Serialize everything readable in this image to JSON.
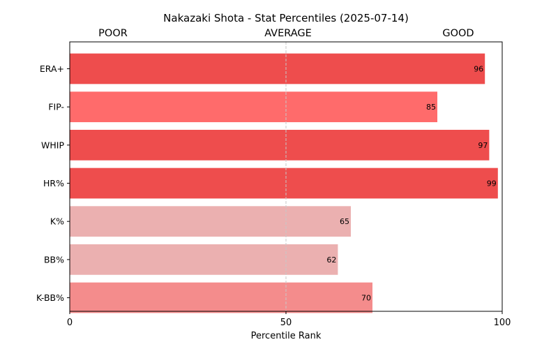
{
  "colors": {
    "elite": "#ee4d4d",
    "strong": "#ff6b6b",
    "above_avg": "#f48c8c",
    "average": "#ebb0b0",
    "axis": "#000000",
    "midline": "#c7c7c7"
  },
  "chart_data": {
    "type": "bar",
    "orientation": "horizontal",
    "title": "Nakazaki Shota - Stat Percentiles (2025-07-14)",
    "xlabel": "Percentile Rank",
    "ylabel": "",
    "xlim": [
      0,
      100
    ],
    "x_ticks": [
      "0",
      "50",
      "100"
    ],
    "zone_labels": [
      "POOR",
      "AVERAGE",
      "GOOD"
    ],
    "reference_line": 50,
    "grid": false,
    "categories": [
      "ERA+",
      "FIP-",
      "WHIP",
      "HR%",
      "K%",
      "BB%",
      "K-BB%"
    ],
    "values": [
      96,
      85,
      97,
      99,
      65,
      62,
      70
    ],
    "bar_colors": [
      "elite",
      "strong",
      "elite",
      "elite",
      "average",
      "average",
      "above_avg"
    ]
  }
}
